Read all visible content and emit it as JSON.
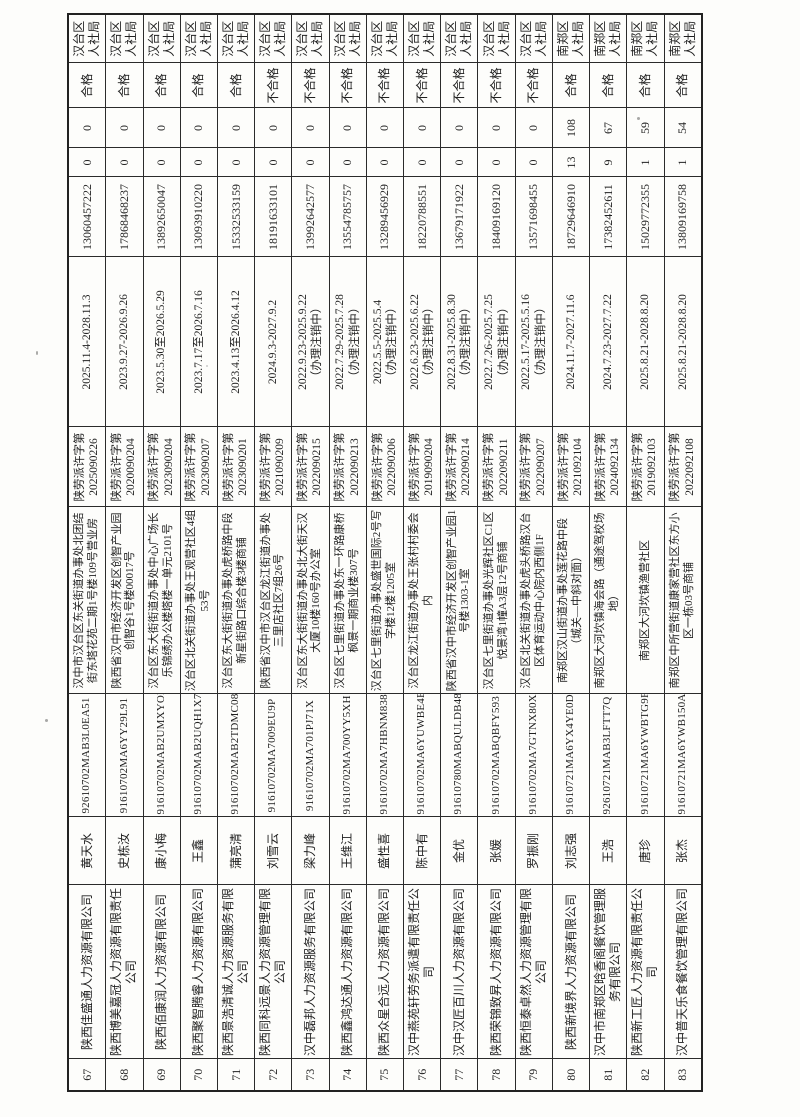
{
  "table": {
    "rows": [
      {
        "no": "67",
        "company": "陕西佳盛通人力资源有限公司",
        "legal_person": "黄天水",
        "credit_code": "92610702MAB3L0EA51",
        "address": "汉中市汉台区东关街道办事处北团结街东塔花苑二期1号楼109号营业房",
        "license_prefix": "陕劳派许字第",
        "license_no": "2025090226",
        "validity": "2025.11.4-2028.11.3",
        "validity_note": "",
        "phone": "13060457222",
        "count_b": "0",
        "count_a": "0",
        "result": "合格",
        "bureau": "汉台区人社局"
      },
      {
        "no": "68",
        "company": "陕西博美嘉冠人力资源有限责任公司",
        "legal_person": "史栋汝",
        "credit_code": "91610702MA6YY29L91",
        "address": "陕西省汉中市经济开发区创智产业园创智谷1号楼00017号",
        "license_prefix": "陕劳派许字第",
        "license_no": "2020090204",
        "validity": "2023.9.27-2026.9.26",
        "validity_note": "",
        "phone": "17868468237",
        "count_b": "0",
        "count_a": "0",
        "result": "合格",
        "bureau": "汉台区人社局"
      },
      {
        "no": "69",
        "company": "陕西佰康润人力资源有限公司",
        "legal_person": "康小梅",
        "credit_code": "91610702MAB2UMXYOR",
        "address": "汉台区东大街街道办事处中心广场长乐锦绣办公楼塔楼一单元2101号",
        "license_prefix": "陕劳派许字第",
        "license_no": "2023090204",
        "validity": "2023.5.30至2026.5.29",
        "validity_note": "",
        "phone": "13892650047",
        "count_b": "0",
        "count_a": "0",
        "result": "合格",
        "bureau": "汉台区人社局"
      },
      {
        "no": "70",
        "company": "陕西聚智腾睿人力资源有限公司",
        "legal_person": "王鑫",
        "credit_code": "91610702MAB2UQH1X7",
        "address": "汉台区北关街道办事处王观营社区4组53号",
        "license_prefix": "陕劳派许字第",
        "license_no": "2023090207",
        "validity": "2023.7.17至2026.7.16",
        "validity_note": "",
        "phone": "13093910220",
        "count_b": "0",
        "count_a": "0",
        "result": "合格",
        "bureau": "汉台区人社局"
      },
      {
        "no": "71",
        "company": "陕西景浩清诚人力资源服务有限公司",
        "legal_person": "蒲亮清",
        "credit_code": "91610702MAB2TDMC08",
        "address": "汉台区东大街街道办事处虎桥路中段新星街路口综合楼3楼商铺",
        "license_prefix": "陕劳派许字第",
        "license_no": "2023090201",
        "validity": "2023.4.13至2026.4.12",
        "validity_note": "",
        "phone": "15332533159",
        "count_b": "0",
        "count_a": "0",
        "result": "合格",
        "bureau": "汉台区人社局"
      },
      {
        "no": "72",
        "company": "陕西同科远景人力资源管理有限公司",
        "legal_person": "刘雪云",
        "credit_code": "91610702MA7009EU9P",
        "address": "陕西省汉中市汉台区龙江街道办事处三里店社区7组26号",
        "license_prefix": "陕劳派许字第",
        "license_no": "2021090209",
        "validity": "2024.9.3-2027.9.2",
        "validity_note": "",
        "phone": "18191633101",
        "count_b": "0",
        "count_a": "0",
        "result": "不合格",
        "bureau": "汉台区人社局"
      },
      {
        "no": "73",
        "company": "汉中磊邦人力资源服务有限公司",
        "legal_person": "梁力峰",
        "credit_code": "91610702MA701PJ71X",
        "address": "汉台区东大街街道办事处北大街天汉大厦10楼160号办公室",
        "license_prefix": "陕劳派许字第",
        "license_no": "2022090215",
        "validity": "2022.9.23-2025.9.22",
        "validity_note": "（办理注销中）",
        "phone": "13992642577",
        "count_b": "0",
        "count_a": "0",
        "result": "不合格",
        "bureau": "汉台区人社局"
      },
      {
        "no": "74",
        "company": "陕西鑫鸿达通人力资源有限公司",
        "legal_person": "王维江",
        "credit_code": "91610702MA700YY5XH",
        "address": "汉台区七里街道办事处东一环路康桥枫景一期商业楼307号",
        "license_prefix": "陕劳派许字第",
        "license_no": "2022090213",
        "validity": "2022.7.29-2025.7.28",
        "validity_note": "（办理注销中）",
        "phone": "13554785757",
        "count_b": "0",
        "count_a": "0",
        "result": "不合格",
        "bureau": "汉台区人社局"
      },
      {
        "no": "75",
        "company": "陕西众星合远人力资源有限公司",
        "legal_person": "盛性喜",
        "credit_code": "91610702MA7HBNM838",
        "address": "汉台区七里街道办事处盛世国际2号写字楼12楼1205室",
        "license_prefix": "陕劳派许字第",
        "license_no": "2022090206",
        "validity": "2022.5.5-2025.5.4",
        "validity_note": "（办理注销中）",
        "phone": "13289456929",
        "count_b": "0",
        "count_a": "0",
        "result": "不合格",
        "bureau": "汉台区人社局"
      },
      {
        "no": "76",
        "company": "汉中燕苑轩劳务派遣有限责任公司",
        "legal_person": "陈中有",
        "credit_code": "91610702MA6YUWBE4B",
        "address": "汉台区龙江街道办事处王张村村委会内",
        "license_prefix": "陕劳派许字第",
        "license_no": "2019090204",
        "validity": "2022.6.23-2025.6.22",
        "validity_note": "（办理注销中）",
        "phone": "18220788551",
        "count_b": "0",
        "count_a": "0",
        "result": "不合格",
        "bureau": "汉台区人社局"
      },
      {
        "no": "77",
        "company": "汉中汉匠百川人力资源有限公司",
        "legal_person": "金优",
        "credit_code": "91610780MABQULDB48",
        "address": "陕西省汉中市经济开发区创智产业园1号楼1303-1室",
        "license_prefix": "陕劳派许字第",
        "license_no": "2022090214",
        "validity": "2022.8.31-2025.8.30",
        "validity_note": "（办理注销中）",
        "phone": "13679171922",
        "count_b": "0",
        "count_a": "0",
        "result": "不合格",
        "bureau": "汉台区人社局"
      },
      {
        "no": "78",
        "company": "陕西荣锦致昇人力资源有限公司",
        "legal_person": "张媛",
        "credit_code": "91610702MABQBFY593",
        "address": "汉台区七里街道办事处光辉社区C1区悦景湾1幢A3层12号商铺",
        "license_prefix": "陕劳派许字第",
        "license_no": "2022090211",
        "validity": "2022.7.26-2025.7.25",
        "validity_note": "（办理注销中）",
        "phone": "18409169120",
        "count_b": "0",
        "count_a": "0",
        "result": "不合格",
        "bureau": "汉台区人社局"
      },
      {
        "no": "79",
        "company": "陕西恒泰卓然人力资源管理有限公司",
        "legal_person": "罗振刚",
        "credit_code": "91610702MA7GTNX80X",
        "address": "汉台区北关街道办事处虎头桥路汉台区体育运动中心院内西侧1F",
        "license_prefix": "陕劳派许字第",
        "license_no": "2022090207",
        "validity": "2022.5.17-2025.5.16",
        "validity_note": "（办理注销中）",
        "phone": "13571698455",
        "count_b": "0",
        "count_a": "0",
        "result": "不合格",
        "bureau": "汉台区人社局"
      },
      {
        "no": "80",
        "company": "陕西新境界人力资源有限公司",
        "legal_person": "刘志强",
        "credit_code": "91610721MA6YX4YE0D",
        "address": "南郑区汉山街道办事处莲花路中段（城关—中斜对面）",
        "license_prefix": "陕劳派许字第",
        "license_no": "2021092104",
        "validity": "2024.11.7-2027.11.6",
        "validity_note": "",
        "phone": "18729646910",
        "count_b": "13",
        "count_a": "108",
        "result": "合格",
        "bureau": "南郑区人社局"
      },
      {
        "no": "81",
        "company": "汉中市南郑区晗香阁餐饮管理服务有限公司",
        "legal_person": "王浩",
        "credit_code": "92610721MAB3LFTT7Q",
        "address": "南郑区大河坎镇海会路（通途驾校场地）",
        "license_prefix": "陕劳派许字第",
        "license_no": "2024092134",
        "validity": "2024.7.23-2027.7.22",
        "validity_note": "",
        "phone": "17382452611",
        "count_b": "9",
        "count_a": "67",
        "result": "合格",
        "bureau": "南郑区人社局"
      },
      {
        "no": "82",
        "company": "陕西新工匠人力资源有限责任公司",
        "legal_person": "唐珍",
        "credit_code": "91610721MA6YWBTG9F",
        "address": "南郑区大河坎镇渔营社区",
        "license_prefix": "陕劳派许字第",
        "license_no": "2019092103",
        "validity": "2025.8.21-2028.8.20",
        "validity_note": "",
        "phone": "15029772355",
        "count_b": "1",
        "count_a": "59",
        "result": "合格",
        "bureau": "南郑区人社局"
      },
      {
        "no": "83",
        "company": "汉中普天乐食餐饮管理有限公司",
        "legal_person": "张杰",
        "credit_code": "91610721MA6YWB150A",
        "address": "南郑区中所营街道康家营社区东方小区一栋03号商铺",
        "license_prefix": "陕劳派许字第",
        "license_no": "2022092108",
        "validity": "2025.8.21-2028.8.20",
        "validity_note": "",
        "phone": "13809169758",
        "count_b": "1",
        "count_a": "54",
        "result": "合格",
        "bureau": "南郑区人社局"
      }
    ]
  }
}
